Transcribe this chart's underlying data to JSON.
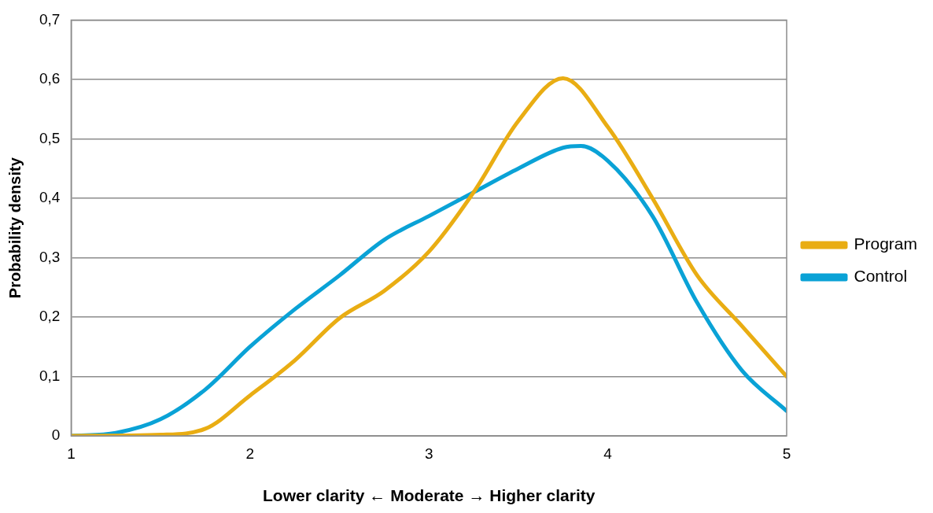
{
  "chart_data": {
    "type": "line",
    "xlabel": "Lower clarity ← Moderate → Higher clarity",
    "ylabel": "Probability density",
    "series": [
      {
        "name": "Program",
        "color": "#e9ad13",
        "x": [
          1,
          1.5,
          1.75,
          2,
          2.25,
          2.5,
          2.75,
          3,
          3.25,
          3.5,
          3.75,
          4,
          4.25,
          4.5,
          4.75,
          5
        ],
        "values": [
          0,
          0.002,
          0.012,
          0.068,
          0.127,
          0.198,
          0.244,
          0.31,
          0.41,
          0.53,
          0.602,
          0.52,
          0.4,
          0.27,
          0.185,
          0.1
        ]
      },
      {
        "name": "Control",
        "color": "#0aa2d6",
        "x": [
          1,
          1.25,
          1.5,
          1.75,
          2,
          2.25,
          2.5,
          2.75,
          3,
          3.25,
          3.5,
          3.75,
          3.85,
          4,
          4.25,
          4.5,
          4.75,
          5
        ],
        "values": [
          0,
          0.005,
          0.028,
          0.078,
          0.15,
          0.213,
          0.27,
          0.33,
          0.37,
          0.41,
          0.45,
          0.485,
          0.488,
          0.463,
          0.37,
          0.224,
          0.11,
          0.042
        ]
      }
    ],
    "xlim": [
      1,
      5
    ],
    "xticks": [
      1,
      2,
      3,
      4,
      5
    ],
    "ylim": [
      0,
      0.7
    ],
    "yticks": [
      0,
      {
        "value": 0.1,
        "label": "0,1"
      },
      {
        "value": 0.2,
        "label": "0,2"
      },
      {
        "value": 0.3,
        "label": "0,3"
      },
      {
        "value": 0.4,
        "label": "0,4"
      },
      {
        "value": 0.5,
        "label": "0,5"
      },
      {
        "value": 0.6,
        "label": "0,6"
      },
      {
        "value": 0.7,
        "label": "0,7"
      }
    ],
    "grid": "y",
    "legend": "right",
    "marker": "none",
    "line_style": "solid"
  }
}
